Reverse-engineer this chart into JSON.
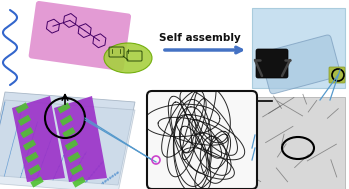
{
  "bg_color": "#ffffff",
  "self_assembly_text": "Self assembly",
  "arrow_color": "#4472c4",
  "pink_rect_color": "#e090d0",
  "green_ellipse_color": "#a8d040",
  "purple_stripe_color": "#9b30c8",
  "green_bar_color": "#50c030",
  "wavy_color": "#3366cc",
  "nanofiber_box_bg": "#f8f8f8",
  "nanofiber_box_color": "#111111",
  "circle_color": "#000000",
  "pink_small_circle": "#cc88cc",
  "connector_line_color": "#5599cc",
  "sheet_color": "#c8d8e8",
  "sheet_edge": "#9aaabb",
  "mol_color": "#440066",
  "vial_bg": "#c8e0f0",
  "tem_bg": "#d8d8d8"
}
